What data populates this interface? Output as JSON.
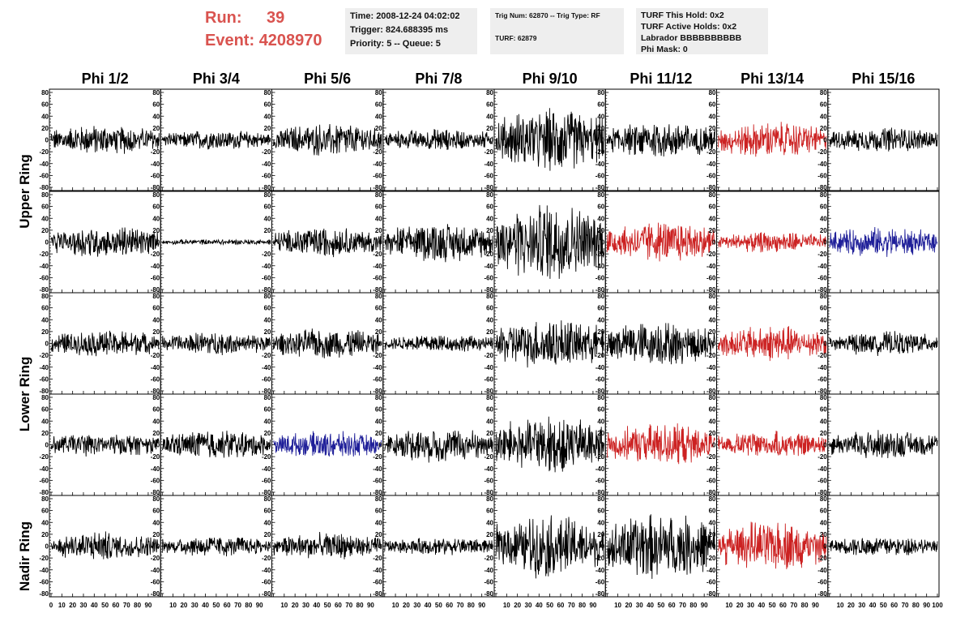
{
  "header": {
    "run_label": "Run:",
    "run_value": "39",
    "event_label": "Event:",
    "event_value": "4208970"
  },
  "info": {
    "time": "Time: 2008-12-24 04:02:02",
    "trigger": "Trigger: 824.688395 ms",
    "priority": "Priority: 5 -- Queue: 5",
    "trig_num": "Trig Num: 62870 -- Trig Type: RF",
    "turf": "TURF: 62879",
    "turf_this_hold": "TURF This Hold: 0x2",
    "turf_active_holds": "TURF Active Holds: 0x2",
    "labrador": "Labrador BBBBBBBBBB",
    "phi_mask": "Phi Mask: 0"
  },
  "colors": {
    "black": "#000000",
    "red": "#cc2222",
    "blue": "#1f1f99"
  },
  "chart_data": {
    "type": "line",
    "columns": [
      "Phi 1/2",
      "Phi 3/4",
      "Phi 5/6",
      "Phi 7/8",
      "Phi 9/10",
      "Phi 11/12",
      "Phi 13/14",
      "Phi 15/16"
    ],
    "row_labels": [
      "Upper Ring",
      "Lower Ring",
      "Nadir Ring"
    ],
    "y_ticks": [
      "80",
      "60",
      "40",
      "20",
      "0",
      "-20",
      "-40",
      "-60",
      "-80"
    ],
    "x_ticks": [
      "0",
      "10",
      "20",
      "30",
      "40",
      "50",
      "60",
      "70",
      "80",
      "90",
      "100"
    ],
    "xlim": [
      0,
      100
    ],
    "ylim": [
      -80,
      80
    ],
    "trace_colors": [
      [
        "black",
        "black",
        "black",
        "black",
        "black",
        "black",
        "red",
        "black"
      ],
      [
        "black",
        "black",
        "black",
        "black",
        "black",
        "red",
        "red",
        "blue"
      ],
      [
        "black",
        "black",
        "black",
        "black",
        "black",
        "black",
        "red",
        "black"
      ],
      [
        "black",
        "black",
        "blue",
        "black",
        "black",
        "red",
        "red",
        "black"
      ],
      [
        "black",
        "black",
        "black",
        "black",
        "black",
        "black",
        "red",
        "black"
      ]
    ],
    "trace_amplitudes": [
      [
        20,
        13,
        22,
        15,
        42,
        25,
        24,
        17
      ],
      [
        22,
        4,
        20,
        26,
        52,
        28,
        14,
        20
      ],
      [
        18,
        16,
        20,
        12,
        34,
        30,
        24,
        16
      ],
      [
        16,
        20,
        18,
        24,
        40,
        28,
        18,
        20
      ],
      [
        20,
        14,
        18,
        12,
        42,
        44,
        34,
        14
      ]
    ]
  }
}
